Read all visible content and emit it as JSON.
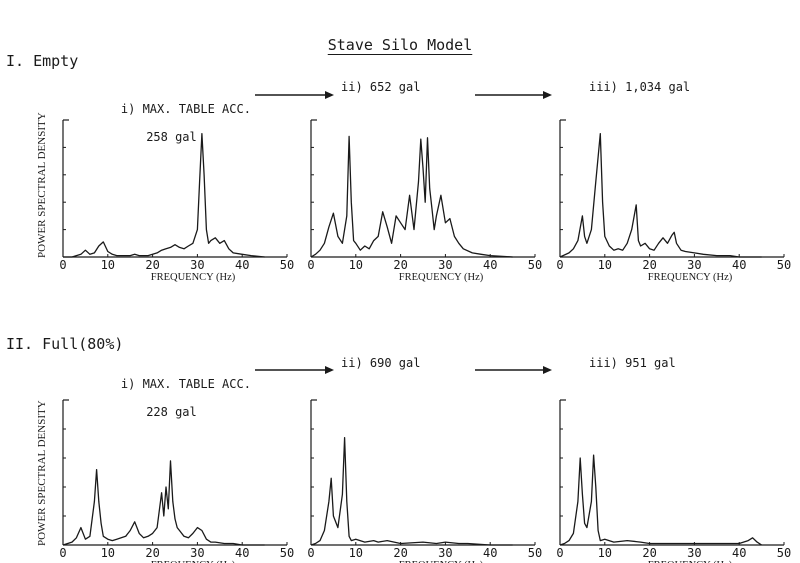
{
  "title": "Stave Silo Model",
  "ylabel": "POWER SPECTRAL DENSITY",
  "xlabel": "FREQUENCY (Hz)",
  "sections": [
    {
      "label": "I. Empty",
      "conditions": [
        {
          "line1": "i) MAX. TABLE ACC.",
          "line2": "258 gal"
        },
        {
          "line1": "ii) 652 gal",
          "line2": ""
        },
        {
          "line1": "iii) 1,034 gal",
          "line2": ""
        }
      ]
    },
    {
      "label": "II. Full(80%)",
      "conditions": [
        {
          "line1": "i) MAX. TABLE ACC.",
          "line2": "228 gal"
        },
        {
          "line1": "ii) 690 gal",
          "line2": ""
        },
        {
          "line1": "iii) 951 gal",
          "line2": ""
        }
      ]
    }
  ],
  "chart_data": [
    {
      "type": "line",
      "panel": "I-i",
      "xlabel": "FREQUENCY (Hz)",
      "ylabel": "POWER SPECTRAL DENSITY",
      "xlim": [
        0,
        50
      ],
      "xticks": [
        0,
        10,
        20,
        30,
        40,
        50
      ],
      "ylim": [
        0,
        1
      ],
      "x": [
        0,
        2,
        3,
        4,
        5,
        6,
        7,
        8,
        9,
        10,
        11,
        12,
        13,
        14,
        15,
        16,
        17,
        18,
        19,
        20,
        21,
        22,
        23,
        24,
        25,
        26,
        27,
        28,
        29,
        30,
        30.5,
        31,
        31.5,
        32,
        32.5,
        33,
        34,
        35,
        36,
        37,
        38,
        40,
        42,
        45
      ],
      "y": [
        0,
        0,
        0.01,
        0.02,
        0.05,
        0.02,
        0.03,
        0.08,
        0.11,
        0.04,
        0.02,
        0.01,
        0.01,
        0.01,
        0.01,
        0.02,
        0.01,
        0.01,
        0.01,
        0.02,
        0.03,
        0.05,
        0.06,
        0.07,
        0.09,
        0.07,
        0.06,
        0.08,
        0.1,
        0.2,
        0.55,
        0.9,
        0.6,
        0.2,
        0.1,
        0.12,
        0.14,
        0.1,
        0.12,
        0.06,
        0.03,
        0.02,
        0.01,
        0
      ]
    },
    {
      "type": "line",
      "panel": "I-ii",
      "xlabel": "FREQUENCY (Hz)",
      "ylabel": "POWER SPECTRAL DENSITY",
      "xlim": [
        0,
        50
      ],
      "xticks": [
        0,
        10,
        20,
        30,
        40,
        50
      ],
      "ylim": [
        0,
        1
      ],
      "x": [
        0,
        1,
        2,
        3,
        4,
        5,
        6,
        7,
        8,
        8.5,
        9,
        9.5,
        10,
        11,
        12,
        13,
        14,
        15,
        16,
        17,
        18,
        19,
        20,
        21,
        22,
        23,
        24,
        24.5,
        25,
        25.5,
        26,
        26.5,
        27,
        27.5,
        28,
        29,
        30,
        31,
        32,
        33,
        34,
        36,
        38,
        40,
        45
      ],
      "y": [
        0,
        0.02,
        0.05,
        0.1,
        0.22,
        0.32,
        0.15,
        0.1,
        0.3,
        0.88,
        0.4,
        0.12,
        0.1,
        0.05,
        0.08,
        0.06,
        0.12,
        0.15,
        0.33,
        0.22,
        0.1,
        0.3,
        0.25,
        0.2,
        0.45,
        0.2,
        0.55,
        0.86,
        0.65,
        0.4,
        0.87,
        0.5,
        0.35,
        0.2,
        0.3,
        0.45,
        0.25,
        0.28,
        0.15,
        0.1,
        0.06,
        0.03,
        0.02,
        0.01,
        0
      ]
    },
    {
      "type": "line",
      "panel": "I-iii",
      "xlabel": "FREQUENCY (Hz)",
      "ylabel": "POWER SPECTRAL DENSITY",
      "xlim": [
        0,
        50
      ],
      "xticks": [
        0,
        10,
        20,
        30,
        40,
        50
      ],
      "ylim": [
        0,
        1
      ],
      "x": [
        0,
        2,
        3,
        4,
        5,
        5.5,
        6,
        7,
        8,
        9,
        9.5,
        10,
        11,
        12,
        13,
        14,
        15,
        16,
        17,
        17.5,
        18,
        19,
        20,
        21,
        22,
        23,
        24,
        25,
        25.5,
        26,
        27,
        28,
        30,
        32,
        35,
        38,
        40,
        45
      ],
      "y": [
        0,
        0.03,
        0.06,
        0.12,
        0.3,
        0.15,
        0.1,
        0.2,
        0.55,
        0.9,
        0.4,
        0.15,
        0.08,
        0.05,
        0.06,
        0.05,
        0.1,
        0.2,
        0.38,
        0.12,
        0.08,
        0.1,
        0.06,
        0.05,
        0.1,
        0.14,
        0.1,
        0.16,
        0.18,
        0.1,
        0.05,
        0.04,
        0.03,
        0.02,
        0.01,
        0.01,
        0,
        0
      ]
    },
    {
      "type": "line",
      "panel": "II-i",
      "xlabel": "FREQUENCY (Hz)",
      "ylabel": "POWER SPECTRAL DENSITY",
      "xlim": [
        0,
        50
      ],
      "xticks": [
        0,
        10,
        20,
        30,
        40,
        50
      ],
      "ylim": [
        0,
        1
      ],
      "x": [
        0,
        2,
        3,
        4,
        5,
        6,
        7,
        7.5,
        8,
        8.5,
        9,
        10,
        11,
        12,
        13,
        14,
        15,
        16,
        17,
        18,
        19,
        20,
        21,
        22,
        22.5,
        23,
        23.5,
        24,
        24.5,
        25,
        25.5,
        26,
        27,
        28,
        29,
        30,
        31,
        32,
        33,
        34,
        36,
        38,
        40,
        45
      ],
      "y": [
        0,
        0.02,
        0.05,
        0.12,
        0.04,
        0.06,
        0.3,
        0.52,
        0.3,
        0.15,
        0.06,
        0.04,
        0.03,
        0.04,
        0.05,
        0.06,
        0.1,
        0.16,
        0.08,
        0.05,
        0.06,
        0.08,
        0.12,
        0.36,
        0.2,
        0.4,
        0.25,
        0.58,
        0.3,
        0.18,
        0.12,
        0.1,
        0.06,
        0.05,
        0.08,
        0.12,
        0.1,
        0.04,
        0.02,
        0.02,
        0.01,
        0.01,
        0,
        0
      ]
    },
    {
      "type": "line",
      "panel": "II-ii",
      "xlabel": "FREQUENCY (Hz)",
      "ylabel": "POWER SPECTRAL DENSITY",
      "xlim": [
        0,
        50
      ],
      "xticks": [
        0,
        10,
        20,
        30,
        40,
        50
      ],
      "ylim": [
        0,
        1
      ],
      "x": [
        0,
        1,
        2,
        3,
        4,
        4.5,
        5,
        6,
        7,
        7.5,
        8,
        8.5,
        9,
        10,
        12,
        14,
        15,
        17,
        20,
        25,
        28,
        30,
        33,
        35,
        40,
        45
      ],
      "y": [
        0,
        0.01,
        0.03,
        0.1,
        0.3,
        0.46,
        0.2,
        0.12,
        0.35,
        0.74,
        0.3,
        0.06,
        0.03,
        0.04,
        0.02,
        0.03,
        0.02,
        0.03,
        0.01,
        0.02,
        0.01,
        0.02,
        0.01,
        0.01,
        0,
        0
      ]
    },
    {
      "type": "line",
      "panel": "II-iii",
      "xlabel": "FREQUENCY (Hz)",
      "ylabel": "POWER SPECTRAL DENSITY",
      "xlim": [
        0,
        50
      ],
      "xticks": [
        0,
        10,
        20,
        30,
        40,
        50
      ],
      "ylim": [
        0,
        1
      ],
      "x": [
        0,
        1,
        2,
        3,
        4,
        4.5,
        5,
        5.5,
        6,
        7,
        7.5,
        8,
        8.5,
        9,
        10,
        12,
        15,
        18,
        20,
        25,
        30,
        35,
        40,
        42,
        43,
        44,
        45
      ],
      "y": [
        0,
        0.01,
        0.03,
        0.08,
        0.3,
        0.6,
        0.35,
        0.15,
        0.12,
        0.3,
        0.62,
        0.4,
        0.1,
        0.03,
        0.04,
        0.02,
        0.03,
        0.02,
        0.01,
        0.01,
        0.01,
        0.01,
        0.01,
        0.03,
        0.05,
        0.02,
        0
      ]
    }
  ]
}
